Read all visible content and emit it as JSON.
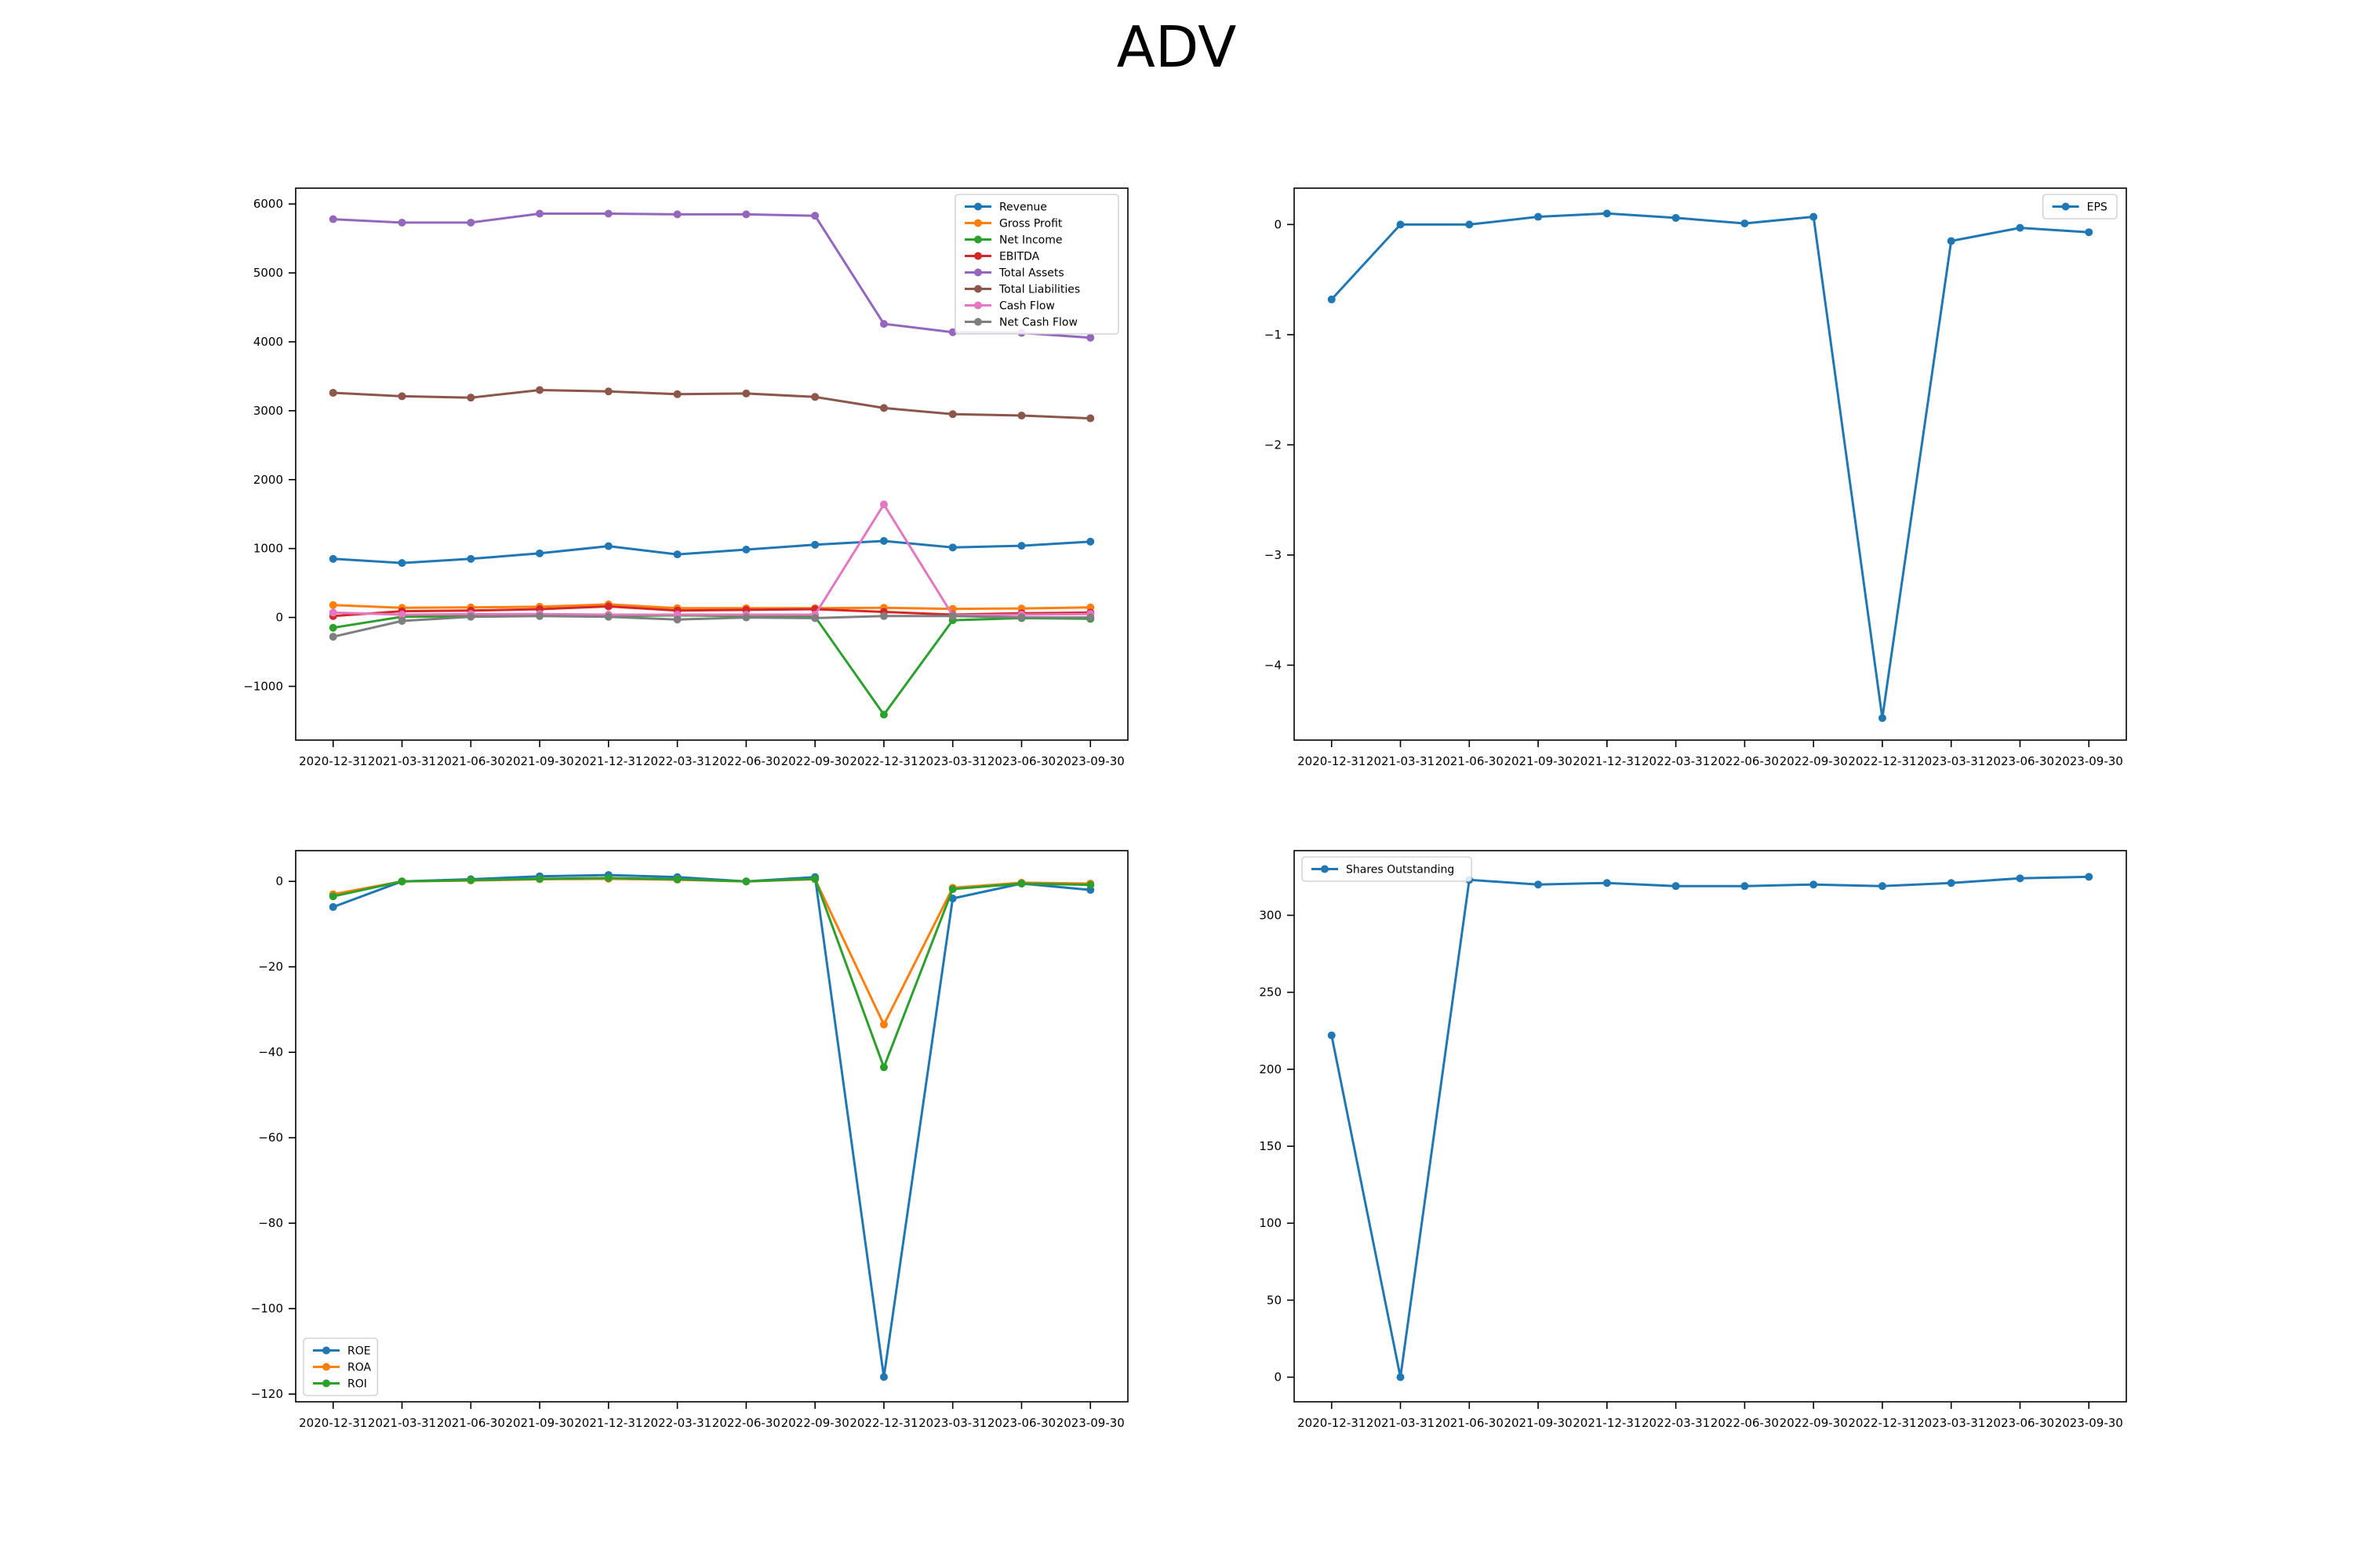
{
  "title": "ADV",
  "chart_data": [
    {
      "type": "line",
      "x": [
        "2020-12-31",
        "2021-03-31",
        "2021-06-30",
        "2021-09-30",
        "2021-12-31",
        "2022-03-31",
        "2022-06-30",
        "2022-09-30",
        "2022-12-31",
        "2023-03-31",
        "2023-06-30",
        "2023-09-30"
      ],
      "yticks": [
        -1000,
        0,
        1000,
        2000,
        3000,
        4000,
        5000,
        6000
      ],
      "ylim": [
        -1780,
        6230
      ],
      "legend": "top-right",
      "series": [
        {
          "name": "Revenue",
          "color": "#1f77b4",
          "values": [
            850,
            790,
            850,
            930,
            1035,
            915,
            985,
            1055,
            1110,
            1015,
            1040,
            1100
          ]
        },
        {
          "name": "Gross Profit",
          "color": "#ff7f0e",
          "values": [
            180,
            140,
            145,
            155,
            190,
            135,
            135,
            135,
            140,
            125,
            130,
            145
          ]
        },
        {
          "name": "Net Income",
          "color": "#2ca02c",
          "values": [
            -150,
            10,
            20,
            30,
            20,
            30,
            20,
            10,
            -1410,
            -40,
            -10,
            -20
          ]
        },
        {
          "name": "EBITDA",
          "color": "#d62728",
          "values": [
            20,
            90,
            100,
            120,
            160,
            100,
            110,
            120,
            80,
            40,
            60,
            70
          ]
        },
        {
          "name": "Total Assets",
          "color": "#9467bd",
          "values": [
            5780,
            5730,
            5730,
            5860,
            5860,
            5850,
            5850,
            5830,
            4260,
            4140,
            4130,
            4060
          ]
        },
        {
          "name": "Total Liabilities",
          "color": "#8c564b",
          "values": [
            3260,
            3210,
            3190,
            3300,
            3280,
            3240,
            3250,
            3200,
            3040,
            2950,
            2930,
            2890
          ]
        },
        {
          "name": "Cash Flow",
          "color": "#e377c2",
          "values": [
            70,
            40,
            50,
            50,
            40,
            40,
            40,
            40,
            1640,
            30,
            40,
            50
          ]
        },
        {
          "name": "Net Cash Flow",
          "color": "#7f7f7f",
          "values": [
            -280,
            -50,
            10,
            20,
            10,
            -30,
            0,
            -10,
            20,
            20,
            0,
            0
          ]
        }
      ]
    },
    {
      "type": "line",
      "x": [
        "2020-12-31",
        "2021-03-31",
        "2021-06-30",
        "2021-09-30",
        "2021-12-31",
        "2022-03-31",
        "2022-06-30",
        "2022-09-30",
        "2022-12-31",
        "2023-03-31",
        "2023-06-30",
        "2023-09-30"
      ],
      "yticks": [
        -4,
        -3,
        -2,
        -1,
        0
      ],
      "ylim": [
        -4.68,
        0.33
      ],
      "legend": "top-right",
      "series": [
        {
          "name": "EPS",
          "color": "#1f77b4",
          "values": [
            -0.68,
            0.0,
            0.0,
            0.07,
            0.1,
            0.06,
            0.01,
            0.07,
            -4.48,
            -0.15,
            -0.03,
            -0.07
          ]
        }
      ]
    },
    {
      "type": "line",
      "x": [
        "2020-12-31",
        "2021-03-31",
        "2021-06-30",
        "2021-09-30",
        "2021-12-31",
        "2022-03-31",
        "2022-06-30",
        "2022-09-30",
        "2022-12-31",
        "2023-03-31",
        "2023-06-30",
        "2023-09-30"
      ],
      "yticks": [
        -120,
        -100,
        -80,
        -60,
        -40,
        -20,
        0
      ],
      "ylim": [
        -121.8,
        7.2
      ],
      "legend": "bottom-left",
      "series": [
        {
          "name": "ROE",
          "color": "#1f77b4",
          "values": [
            -6,
            0,
            0.5,
            1.2,
            1.5,
            1,
            0,
            1,
            -116,
            -4,
            -0.5,
            -2
          ]
        },
        {
          "name": "ROA",
          "color": "#ff7f0e",
          "values": [
            -3,
            0,
            0.2,
            0.5,
            0.6,
            0.4,
            0,
            0.5,
            -33.5,
            -1.5,
            -0.3,
            -0.5
          ]
        },
        {
          "name": "ROI",
          "color": "#2ca02c",
          "values": [
            -3.5,
            0,
            0.3,
            0.6,
            0.8,
            0.5,
            0,
            0.6,
            -43.5,
            -1.8,
            -0.5,
            -0.8
          ]
        }
      ]
    },
    {
      "type": "line",
      "x": [
        "2020-12-31",
        "2021-03-31",
        "2021-06-30",
        "2021-09-30",
        "2021-12-31",
        "2022-03-31",
        "2022-06-30",
        "2022-09-30",
        "2022-12-31",
        "2023-03-31",
        "2023-06-30",
        "2023-09-30"
      ],
      "yticks": [
        0,
        50,
        100,
        150,
        200,
        250,
        300
      ],
      "ylim": [
        -16,
        342
      ],
      "legend": "top-left",
      "series": [
        {
          "name": "Shares Outstanding",
          "color": "#1f77b4",
          "values": [
            222,
            0,
            323,
            320,
            321,
            319,
            319,
            320,
            319,
            321,
            324,
            325
          ]
        }
      ]
    }
  ]
}
